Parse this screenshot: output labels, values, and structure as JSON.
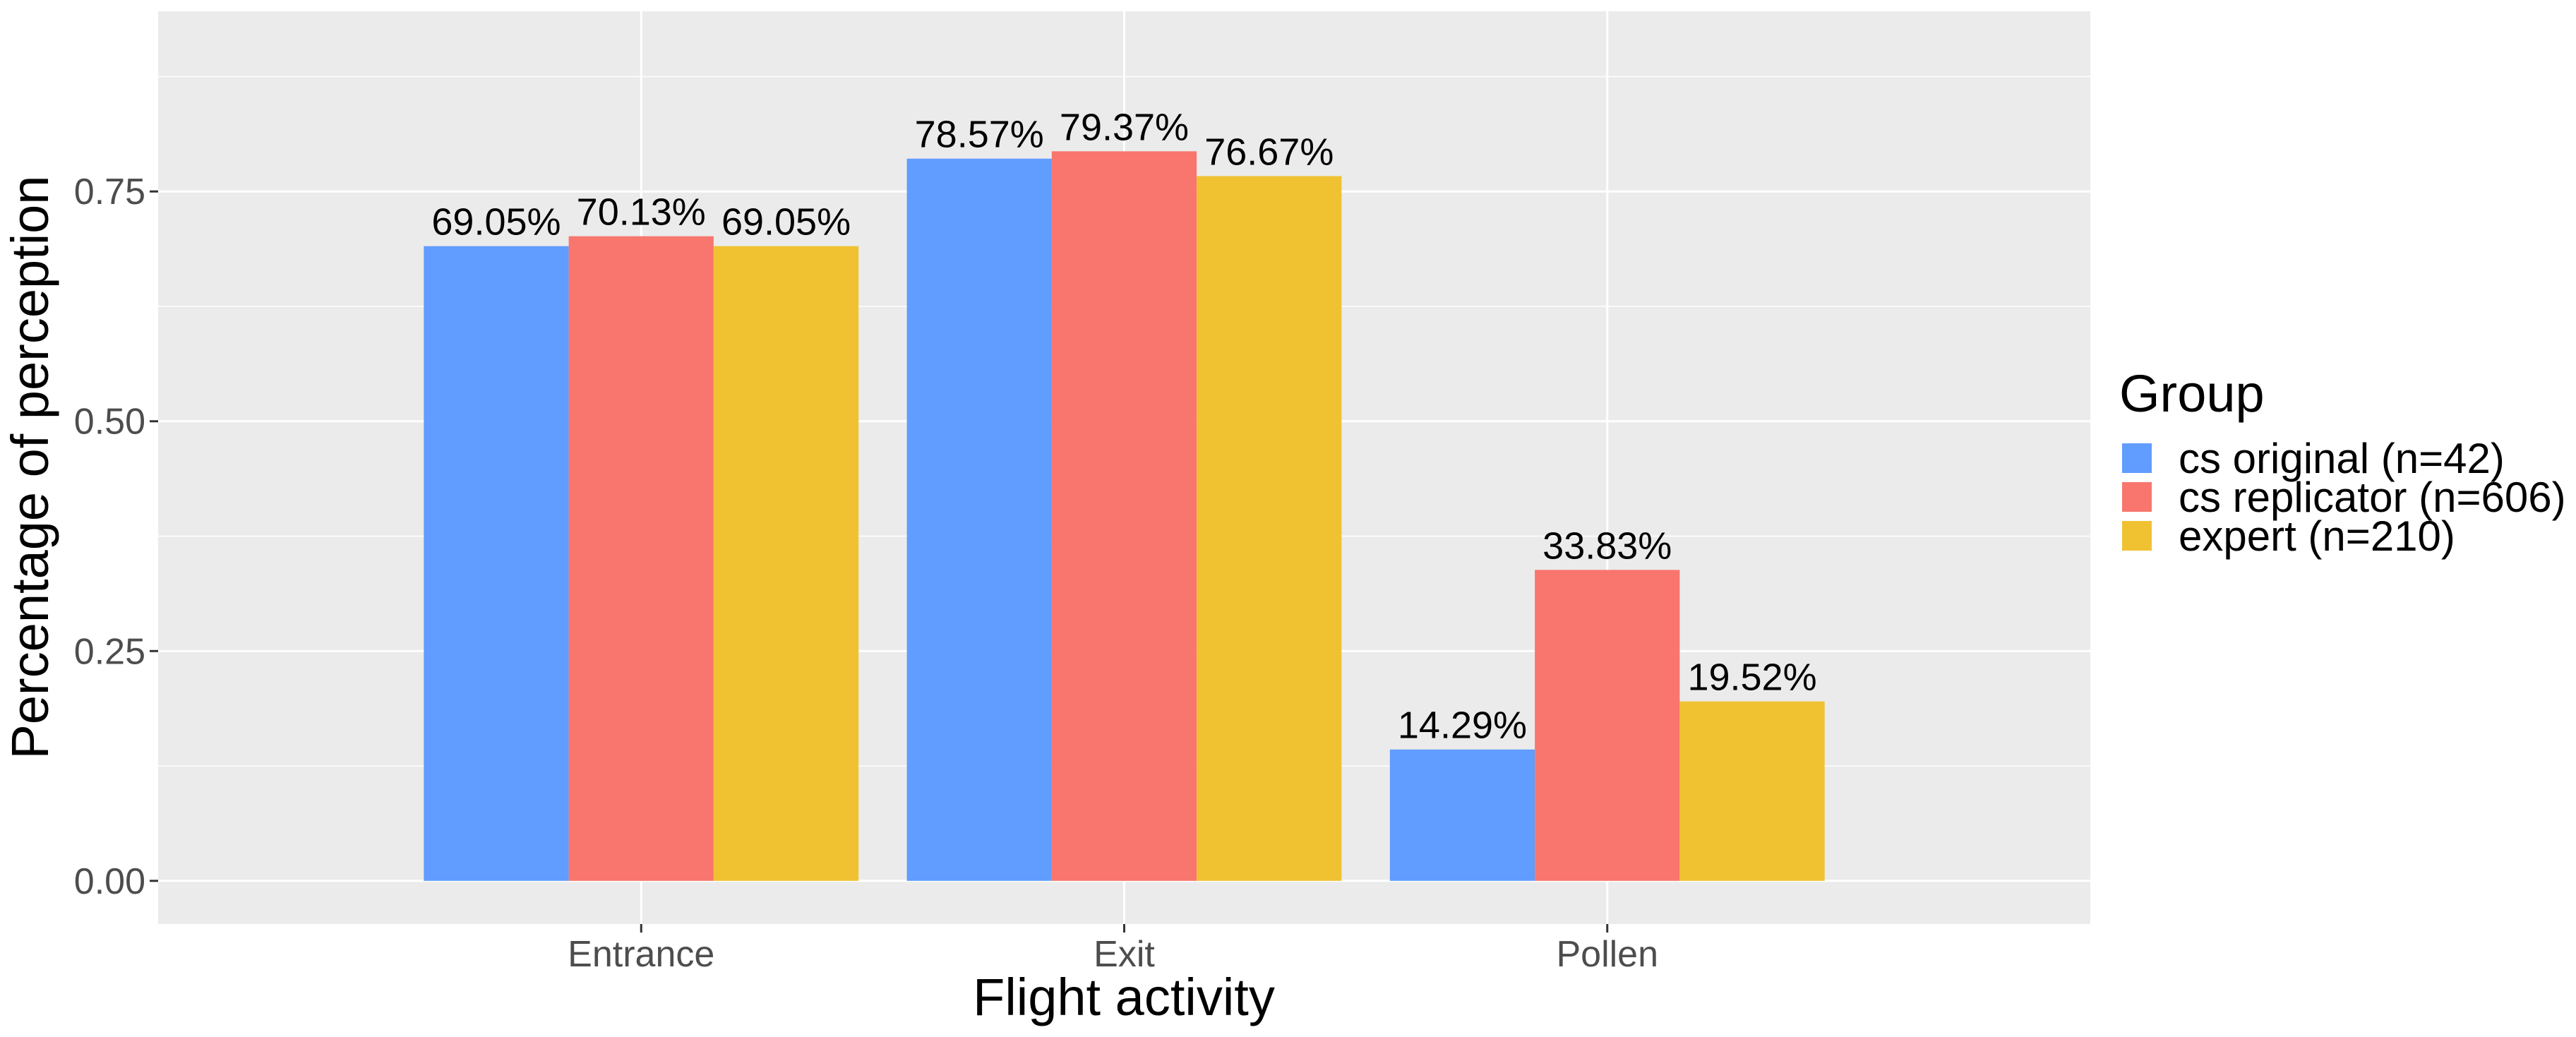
{
  "chart_data": {
    "type": "bar",
    "title": "",
    "xlabel": "Flight activity",
    "ylabel": "Percentage of perception",
    "ylim": [
      -0.047,
      0.946
    ],
    "yticks": [
      0.0,
      0.25,
      0.5,
      0.75
    ],
    "ytick_labels": [
      "0.00",
      "0.25",
      "0.50",
      "0.75"
    ],
    "categories": [
      "Entrance",
      "Exit",
      "Pollen"
    ],
    "series": [
      {
        "name": "cs original (n=42)",
        "color": "#619CFF",
        "values": [
          0.6905,
          0.7857,
          0.1429
        ],
        "labels": [
          "69.05%",
          "78.57%",
          "14.29%"
        ]
      },
      {
        "name": "cs replicator (n=606)",
        "color": "#F8766D",
        "values": [
          0.7013,
          0.7937,
          0.3383
        ],
        "labels": [
          "70.13%",
          "79.37%",
          "33.83%"
        ]
      },
      {
        "name": "expert (n=210)",
        "color": "#F0C232",
        "values": [
          0.6905,
          0.7667,
          0.1952
        ],
        "labels": [
          "69.05%",
          "76.67%",
          "19.52%"
        ]
      }
    ],
    "legend": {
      "title": "Group",
      "position": "right"
    },
    "grid": true,
    "background": "#EBEBEB",
    "grid_color": "#FFFFFF"
  }
}
